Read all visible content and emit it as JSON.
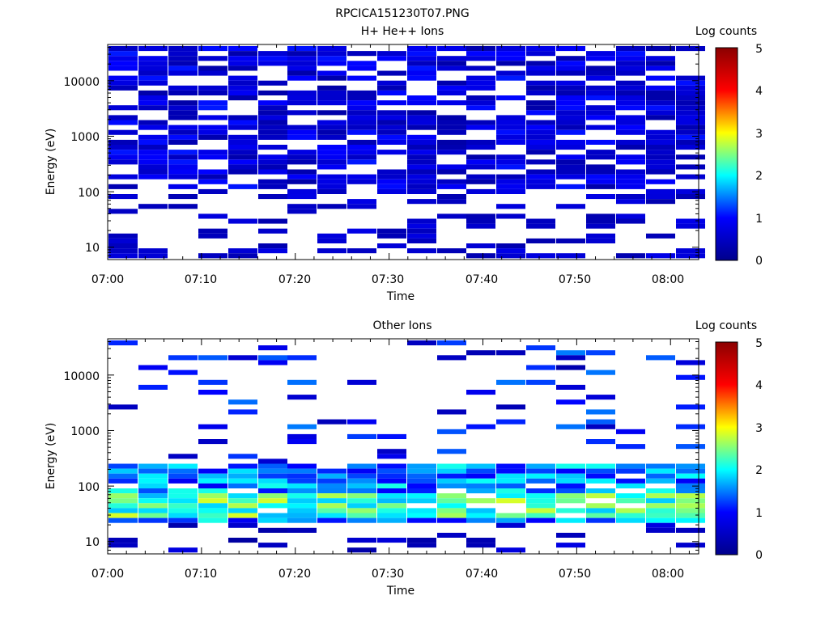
{
  "figure": {
    "title": "RPCICA151230T07.PNG"
  },
  "colorbar": {
    "colors": [
      "#00008b",
      "#0000ff",
      "#00ffff",
      "#ffff00",
      "#ff0000",
      "#8b0000"
    ],
    "stops": [
      0,
      1,
      2,
      3,
      4,
      5
    ]
  },
  "chart_data": [
    {
      "type": "heatmap",
      "title": "H+ He++ Ions",
      "xlabel": "Time",
      "ylabel": "Energy (eV)",
      "colorbar_label": "Log counts",
      "colorbar_ticks": [
        "0",
        "1",
        "2",
        "3",
        "4",
        "5"
      ],
      "x_ticks": [
        "07:00",
        "07:10",
        "07:20",
        "07:30",
        "07:40",
        "07:50",
        "08:00"
      ],
      "y_ticks": [
        "10",
        "100",
        "1000",
        "10000"
      ],
      "y_scale": "log",
      "ylim": [
        6,
        45000
      ],
      "time_bins": [
        "07:01",
        "07:05",
        "07:08",
        "07:11",
        "07:14",
        "07:17",
        "07:20",
        "07:24",
        "07:27",
        "07:30",
        "07:33",
        "07:36",
        "07:40",
        "07:43",
        "07:46",
        "07:49",
        "07:52",
        "07:56",
        "07:59",
        "08:02"
      ],
      "energy_range_eV": [
        6,
        45000
      ],
      "log_count_range": [
        0.2,
        1.2
      ],
      "note_values": "sparse low-level counts (log counts ~0.3-1) above ~100 eV in every time bin"
    },
    {
      "type": "heatmap",
      "title": "Other Ions",
      "xlabel": "Time",
      "ylabel": "Energy (eV)",
      "colorbar_label": "Log counts",
      "colorbar_ticks": [
        "0",
        "1",
        "2",
        "3",
        "4",
        "5"
      ],
      "x_ticks": [
        "07:00",
        "07:10",
        "07:20",
        "07:30",
        "07:40",
        "07:50",
        "08:00"
      ],
      "y_ticks": [
        "10",
        "100",
        "1000",
        "10000"
      ],
      "y_scale": "log",
      "ylim": [
        6,
        45000
      ],
      "time_bins": [
        "07:01",
        "07:05",
        "07:08",
        "07:11",
        "07:14",
        "07:17",
        "07:20",
        "07:24",
        "07:27",
        "07:30",
        "07:33",
        "07:36",
        "07:40",
        "07:43",
        "07:46",
        "07:49",
        "07:52",
        "07:56",
        "07:59",
        "08:02"
      ],
      "energy_range_eV": [
        6,
        45000
      ],
      "log_count_range": [
        0.2,
        2.9
      ],
      "peak_band_eV": [
        25,
        250
      ],
      "peak_log_counts": 2.9
    }
  ]
}
